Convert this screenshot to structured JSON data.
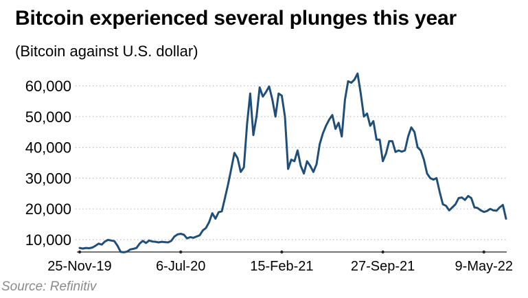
{
  "source": "Source: Refinitiv",
  "colors": {
    "line": "#1f4e79",
    "grid": "#bdbdbd",
    "axis": "#222222"
  },
  "chart_data": {
    "type": "line",
    "title": "Bitcoin experienced several plunges this year",
    "subtitle": "(Bitcoin against U.S. dollar)",
    "xlabel": "",
    "ylabel": "",
    "ylim": [
      6000,
      66000
    ],
    "yticks": [
      10000,
      20000,
      30000,
      40000,
      50000,
      60000
    ],
    "ytick_labels": [
      "10,000",
      "20,000",
      "30,000",
      "40,000",
      "50,000",
      "60,000"
    ],
    "xticks": [
      {
        "index": 0,
        "label": "25-Nov-19"
      },
      {
        "index": 32,
        "label": "6-Jul-20"
      },
      {
        "index": 64,
        "label": "15-Feb-21"
      },
      {
        "index": 96,
        "label": "27-Sep-21"
      },
      {
        "index": 128,
        "label": "9-May-22"
      }
    ],
    "grid": true,
    "series": [
      {
        "name": "Bitcoin (USD)",
        "values": [
          7300,
          7100,
          7300,
          7200,
          7400,
          8000,
          8700,
          8400,
          9400,
          9900,
          9700,
          9500,
          8000,
          6000,
          5900,
          6100,
          6800,
          7000,
          7300,
          8700,
          9600,
          8900,
          9700,
          9400,
          9300,
          9100,
          9300,
          9200,
          9100,
          9600,
          11000,
          11700,
          11900,
          11600,
          10400,
          10800,
          10600,
          11000,
          11400,
          13000,
          13800,
          15700,
          18600,
          16800,
          18900,
          19200,
          23500,
          28000,
          33000,
          38200,
          36500,
          32000,
          33500,
          47500,
          57500,
          44000,
          50000,
          59500,
          56500,
          58000,
          59800,
          55600,
          50000,
          57500,
          56800,
          50000,
          33000,
          36000,
          35500,
          39000,
          34000,
          31500,
          35500,
          34000,
          32000,
          34500,
          41000,
          44500,
          47000,
          49000,
          50500,
          46000,
          48000,
          43500,
          55500,
          61500,
          61000,
          62000,
          64000,
          57500,
          50000,
          51000,
          47000,
          48500,
          42500,
          42500,
          35500,
          38000,
          42000,
          42000,
          38500,
          39000,
          38600,
          39000,
          43500,
          46500,
          45000,
          40000,
          39000,
          36000,
          31500,
          30000,
          29500,
          30000,
          25500,
          21500,
          21000,
          19500,
          20500,
          21500,
          23500,
          23700,
          22900,
          24200,
          23500,
          20500,
          20300,
          19500,
          19000,
          19300,
          20000,
          19500,
          19400,
          20500,
          21300,
          16800
        ]
      }
    ]
  }
}
